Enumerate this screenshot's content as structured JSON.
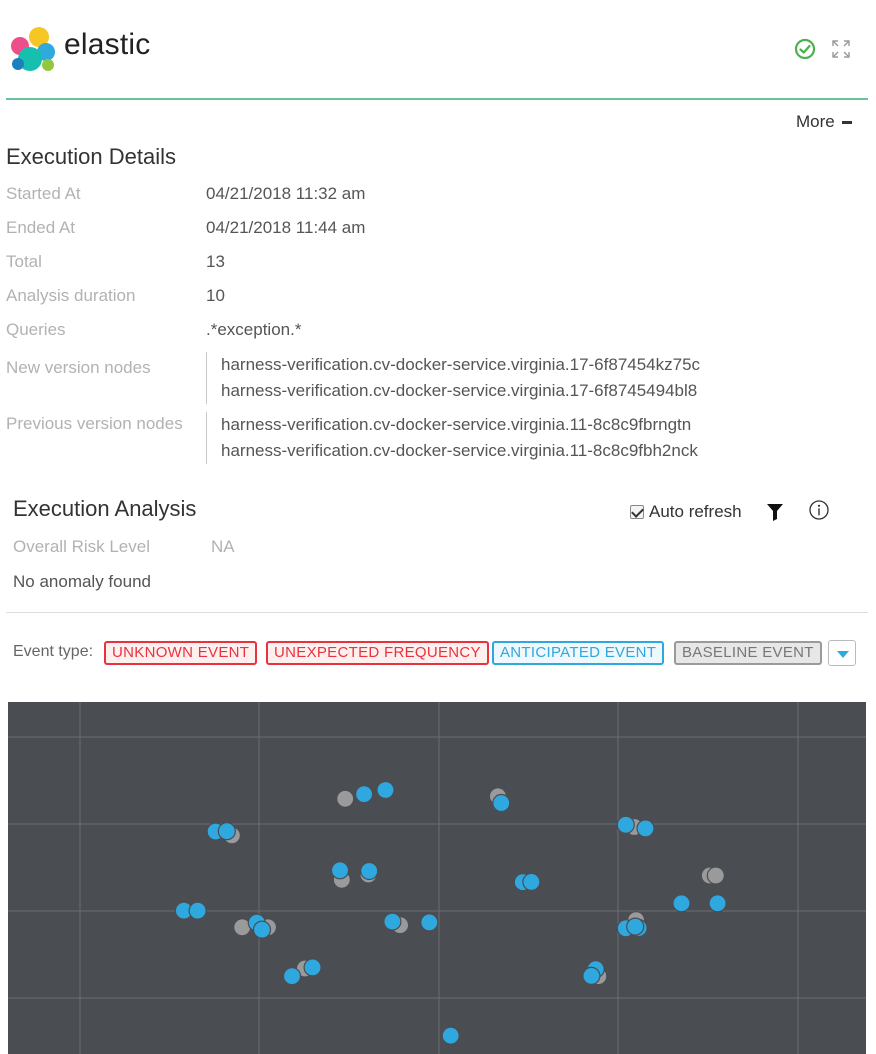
{
  "header": {
    "logo_text": "elastic",
    "status_icon": "check-circle-icon",
    "expand_icon": "expand-icon",
    "accent_color": "#6cc29a"
  },
  "more_menu": {
    "label": "More"
  },
  "execution_details": {
    "title": "Execution Details",
    "rows": [
      {
        "label": "Started At",
        "value": "04/21/2018 11:32 am"
      },
      {
        "label": "Ended At",
        "value": "04/21/2018 11:44 am"
      },
      {
        "label": "Total",
        "value": "13"
      },
      {
        "label": "Analysis duration",
        "value": "10"
      },
      {
        "label": "Queries",
        "value": ".*exception.*"
      }
    ],
    "new_version_nodes": {
      "label": "New version nodes",
      "nodes": [
        "harness-verification.cv-docker-service.virginia.17-6f87454kz75c",
        "harness-verification.cv-docker-service.virginia.17-6f8745494bl8"
      ]
    },
    "previous_version_nodes": {
      "label": "Previous version nodes",
      "nodes": [
        "harness-verification.cv-docker-service.virginia.11-8c8c9fbrngtn",
        "harness-verification.cv-docker-service.virginia.11-8c8c9fbh2nck"
      ]
    }
  },
  "execution_analysis": {
    "title": "Execution Analysis",
    "auto_refresh_label": "Auto refresh",
    "auto_refresh_checked": true,
    "overall_risk_label": "Overall Risk Level",
    "overall_risk_value": "NA",
    "anomaly_text": "No anomaly found"
  },
  "event_filter": {
    "label": "Event type:",
    "tags": {
      "unknown": "UNKNOWN EVENT",
      "unexpected": "UNEXPECTED FREQUENCY",
      "anticipated": "ANTICIPATED EVENT",
      "baseline": "BASELINE EVENT"
    },
    "colors": {
      "unknown": "#e8333f",
      "unexpected": "#e8333f",
      "anticipated": "#2ea8de",
      "baseline": "#9a9a9a"
    }
  },
  "chart_data": {
    "type": "scatter",
    "background": "#4a4d52",
    "grid": true,
    "xlim": [
      0,
      100
    ],
    "ylim": [
      0,
      100
    ],
    "series": [
      {
        "color": "#9a9a9a",
        "points": [
          [
            39.3,
            72.5
          ],
          [
            57.1,
            73.2
          ],
          [
            26.1,
            62.1
          ],
          [
            38.9,
            49.5
          ],
          [
            81.8,
            50.7
          ],
          [
            82.5,
            50.7
          ],
          [
            27.3,
            36.0
          ],
          [
            30.3,
            36.0
          ],
          [
            45.7,
            36.6
          ],
          [
            73.2,
            38.0
          ],
          [
            34.6,
            24.3
          ],
          [
            68.8,
            22.1
          ],
          [
            73.0,
            64.5
          ],
          [
            42.0,
            51.0
          ]
        ]
      },
      {
        "color": "#2ea8de",
        "points": [
          [
            41.5,
            73.8
          ],
          [
            44.0,
            75.0
          ],
          [
            57.5,
            71.3
          ],
          [
            24.2,
            63.2
          ],
          [
            25.5,
            63.3
          ],
          [
            72.0,
            65.1
          ],
          [
            74.3,
            64.1
          ],
          [
            38.7,
            52.2
          ],
          [
            42.1,
            52.0
          ],
          [
            60.0,
            48.8
          ],
          [
            61.0,
            48.9
          ],
          [
            20.5,
            40.7
          ],
          [
            22.1,
            40.7
          ],
          [
            78.5,
            42.8
          ],
          [
            82.7,
            42.8
          ],
          [
            29.0,
            37.3
          ],
          [
            29.6,
            35.3
          ],
          [
            44.8,
            37.6
          ],
          [
            49.1,
            37.4
          ],
          [
            72.0,
            35.7
          ],
          [
            73.5,
            35.8
          ],
          [
            33.1,
            22.1
          ],
          [
            35.5,
            24.6
          ],
          [
            68.5,
            24.1
          ],
          [
            68.0,
            22.2
          ],
          [
            51.6,
            5.2
          ],
          [
            73.1,
            36.2
          ]
        ]
      }
    ]
  }
}
